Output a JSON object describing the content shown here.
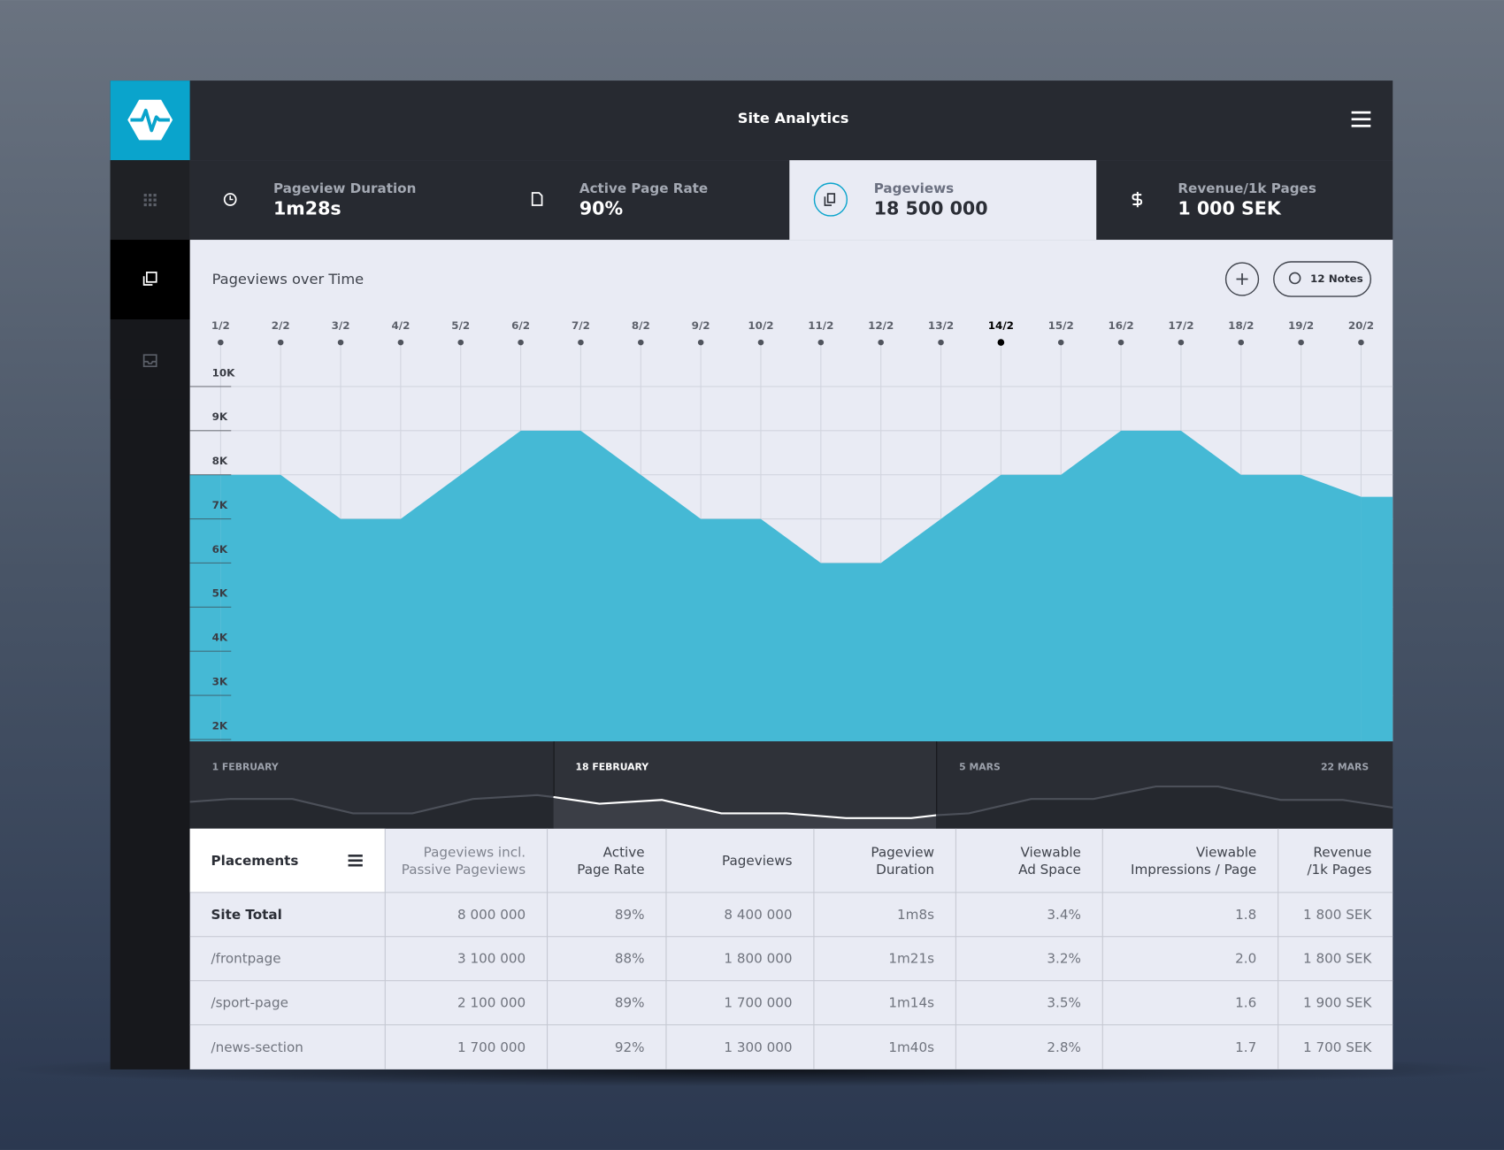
{
  "header": {
    "title": "Site Analytics"
  },
  "metrics": [
    {
      "label": "Pageview Duration",
      "value": "1m28s"
    },
    {
      "label": "Active Page Rate",
      "value": "90%"
    },
    {
      "label": "Pageviews",
      "value": "18 500 000"
    },
    {
      "label": "Revenue/1k Pages",
      "value": "1 000 SEK"
    }
  ],
  "active_metric_index": 2,
  "notes_button": "12 Notes",
  "chart_data": {
    "type": "area",
    "title": "Pageviews over Time",
    "categories": [
      "1/2",
      "2/2",
      "3/2",
      "4/2",
      "5/2",
      "6/2",
      "7/2",
      "8/2",
      "9/2",
      "10/2",
      "11/2",
      "12/2",
      "13/2",
      "14/2",
      "15/2",
      "16/2",
      "17/2",
      "18/2",
      "19/2",
      "20/2"
    ],
    "values": [
      8000,
      8000,
      7000,
      7000,
      8000,
      9000,
      9000,
      8000,
      7000,
      7000,
      6000,
      6000,
      7000,
      8000,
      8000,
      9000,
      9000,
      8000,
      8000,
      7500
    ],
    "color": "#45b9d5",
    "ylim": [
      2000,
      11000
    ],
    "yticks": [
      {
        "value": 2000,
        "label": "2K"
      },
      {
        "value": 3000,
        "label": "3K"
      },
      {
        "value": 4000,
        "label": "4K"
      },
      {
        "value": 5000,
        "label": "5K"
      },
      {
        "value": 6000,
        "label": "6K"
      },
      {
        "value": 7000,
        "label": "7K"
      },
      {
        "value": 8000,
        "label": "8K"
      },
      {
        "value": 9000,
        "label": "9K"
      },
      {
        "value": 10000,
        "label": "10K"
      }
    ],
    "grid": true,
    "active_category_index": 13
  },
  "timeline": [
    "1 FEBRUARY",
    "18 FEBRUARY",
    "5 MARS",
    "22 MARS"
  ],
  "table": {
    "columns": [
      [
        "Placements"
      ],
      [
        "Pageviews incl.",
        "Passive Pageviews"
      ],
      [
        "Active",
        "Page Rate"
      ],
      [
        "Pageviews"
      ],
      [
        "Pageview",
        "Duration"
      ],
      [
        "Viewable",
        "Ad Space"
      ],
      [
        "Viewable",
        "Impressions / Page"
      ],
      [
        "Revenue",
        "/1k Pages"
      ]
    ],
    "rows": [
      [
        "Site Total",
        "8 000 000",
        "89%",
        "8 400 000",
        "1m8s",
        "3.4%",
        "1.8",
        "1 800 SEK"
      ],
      [
        "/frontpage",
        "3 100 000",
        "88%",
        "1 800 000",
        "1m21s",
        "3.2%",
        "2.0",
        "1 800 SEK"
      ],
      [
        "/sport-page",
        "2 100 000",
        "89%",
        "1 700 000",
        "1m14s",
        "3.5%",
        "1.6",
        "1 900 SEK"
      ],
      [
        "/news-section",
        "1 700 000",
        "92%",
        "1 300 000",
        "1m40s",
        "2.8%",
        "1.7",
        "1 700 SEK"
      ]
    ]
  }
}
